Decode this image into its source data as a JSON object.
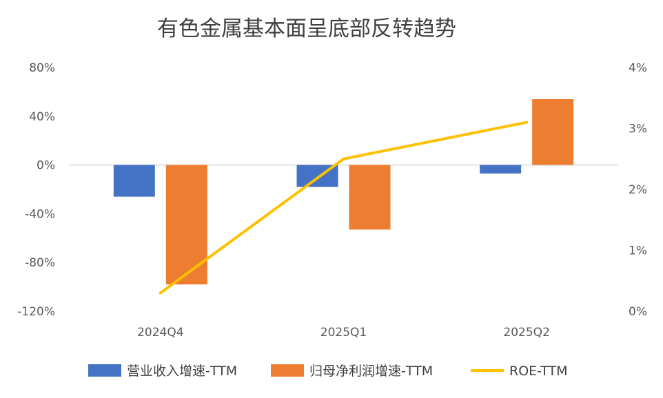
{
  "chart_data": {
    "type": "bar",
    "title": "有色金属基本面呈底部反转趋势",
    "categories": [
      "2024Q4",
      "2025Q1",
      "2025Q2"
    ],
    "y_left": {
      "ylim": [
        -120,
        80
      ],
      "ticks": [
        80,
        40,
        0,
        -40,
        -80,
        -120
      ],
      "tick_labels": [
        "80%",
        "40%",
        "0%",
        "-40%",
        "-80%",
        "-120%"
      ]
    },
    "y_right": {
      "ylim": [
        0,
        4
      ],
      "ticks": [
        4,
        3,
        2,
        1,
        0
      ],
      "tick_labels": [
        "4%",
        "3%",
        "2%",
        "1%",
        "0%"
      ]
    },
    "series": [
      {
        "name": "营业收入增速-TTM",
        "kind": "bar",
        "axis": "left",
        "color": "#4472C4",
        "values": [
          -26,
          -18,
          -7
        ]
      },
      {
        "name": "归母净利润增速-TTM",
        "kind": "bar",
        "axis": "left",
        "color": "#ED7D31",
        "values": [
          -98,
          -53,
          54
        ]
      },
      {
        "name": "ROE-TTM",
        "kind": "line",
        "axis": "right",
        "color": "#FFC000",
        "values": [
          0.3,
          2.5,
          3.1
        ]
      }
    ],
    "legend": "bottom",
    "grid": false
  }
}
